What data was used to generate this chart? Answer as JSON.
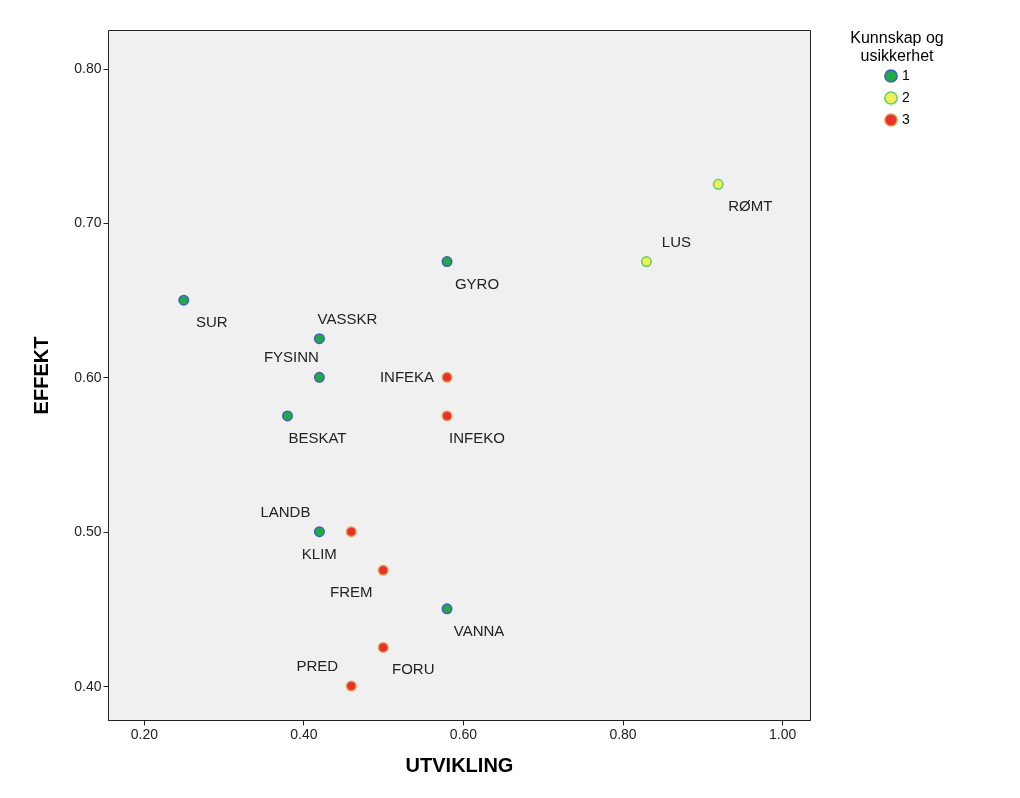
{
  "chart_data": {
    "type": "scatter",
    "xlabel": "UTVIKLING",
    "ylabel": "EFFEKT",
    "legend_title": "Kunnskap og usikkerhet",
    "legend": "top right",
    "grid": false,
    "marker": "circle",
    "xlim": [
      0.155,
      1.035
    ],
    "ylim": [
      0.378,
      0.825
    ],
    "xticks": [
      {
        "value": 0.2,
        "label": "0.20"
      },
      {
        "value": 0.4,
        "label": "0.40"
      },
      {
        "value": 0.6,
        "label": "0.60"
      },
      {
        "value": 0.8,
        "label": "0.80"
      },
      {
        "value": 1.0,
        "label": "1.00"
      }
    ],
    "yticks": [
      {
        "value": 0.4,
        "label": "0.40"
      },
      {
        "value": 0.5,
        "label": "0.50"
      },
      {
        "value": 0.6,
        "label": "0.60"
      },
      {
        "value": 0.7,
        "label": "0.70"
      },
      {
        "value": 0.8,
        "label": "0.80"
      }
    ],
    "series": [
      {
        "name": "1",
        "color": "#22a845",
        "x": [
          0.25,
          0.42,
          0.42,
          0.38,
          0.42,
          0.58,
          0.58
        ],
        "values": [
          0.65,
          0.625,
          0.6,
          0.575,
          0.5,
          0.45,
          0.675
        ]
      },
      {
        "name": "2",
        "color": "#f2f05a",
        "x": [
          0.83,
          0.92
        ],
        "values": [
          0.675,
          0.725
        ]
      },
      {
        "name": "3",
        "color": "#ec2f2a",
        "x": [
          0.58,
          0.58,
          0.46,
          0.5,
          0.5,
          0.46
        ],
        "values": [
          0.6,
          0.575,
          0.5,
          0.475,
          0.425,
          0.4
        ]
      }
    ],
    "annotations": [
      {
        "text": "SUR",
        "x": 0.25,
        "y": 0.65
      },
      {
        "text": "VASSKR",
        "x": 0.42,
        "y": 0.625
      },
      {
        "text": "FYSINN",
        "x": 0.42,
        "y": 0.6
      },
      {
        "text": "INFEKA",
        "x": 0.58,
        "y": 0.6
      },
      {
        "text": "BESKAT",
        "x": 0.38,
        "y": 0.575
      },
      {
        "text": "INFEKO",
        "x": 0.58,
        "y": 0.575
      },
      {
        "text": "LANDB",
        "x": 0.42,
        "y": 0.5
      },
      {
        "text": "KLIM",
        "x": 0.46,
        "y": 0.5
      },
      {
        "text": "FREM",
        "x": 0.5,
        "y": 0.475
      },
      {
        "text": "VANNA",
        "x": 0.58,
        "y": 0.45
      },
      {
        "text": "FORU",
        "x": 0.5,
        "y": 0.425
      },
      {
        "text": "PRED",
        "x": 0.46,
        "y": 0.4
      },
      {
        "text": "GYRO",
        "x": 0.58,
        "y": 0.675
      },
      {
        "text": "LUS",
        "x": 0.83,
        "y": 0.675
      },
      {
        "text": "RØMT",
        "x": 0.92,
        "y": 0.725
      }
    ]
  }
}
